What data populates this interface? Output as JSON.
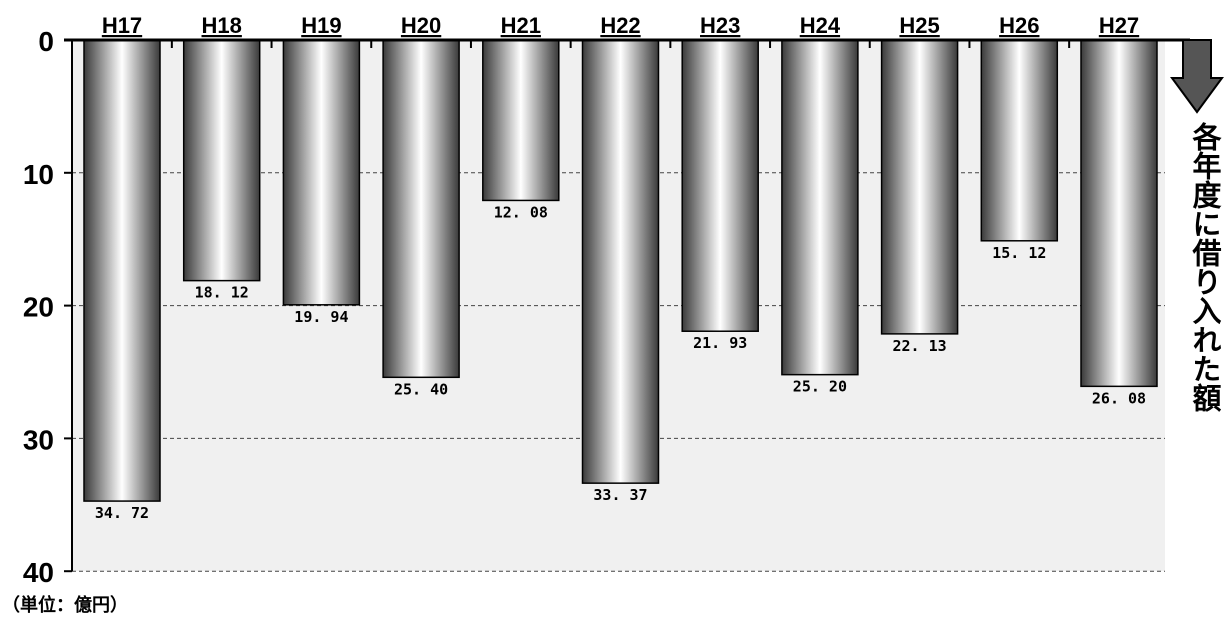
{
  "chart_data": {
    "type": "bar",
    "orientation": "vertical-hanging",
    "categories": [
      "H17",
      "H18",
      "H19",
      "H20",
      "H21",
      "H22",
      "H23",
      "H24",
      "H25",
      "H26",
      "H27"
    ],
    "values": [
      34.72,
      18.12,
      19.94,
      25.4,
      12.08,
      33.37,
      21.93,
      25.2,
      22.13,
      15.12,
      26.08
    ],
    "value_labels": [
      "34. 72",
      "18. 12",
      "19. 94",
      "25. 40",
      "12. 08",
      "33. 37",
      "21. 93",
      "25. 20",
      "22. 13",
      "15. 12",
      "26. 08"
    ],
    "ylim": [
      0,
      40
    ],
    "y_ticks": [
      "0",
      "10",
      "20",
      "30",
      "40"
    ],
    "y_inverted": true,
    "grid": "dashed horizontal",
    "side_label": "各年度に借り入れた額",
    "unit_label": "（単位：億円）",
    "bar_color_light": "#ffffff",
    "bar_color_dark": "#3a3a3a",
    "plot_bg": "#f0f0f0",
    "arrow_color": "#555555"
  }
}
